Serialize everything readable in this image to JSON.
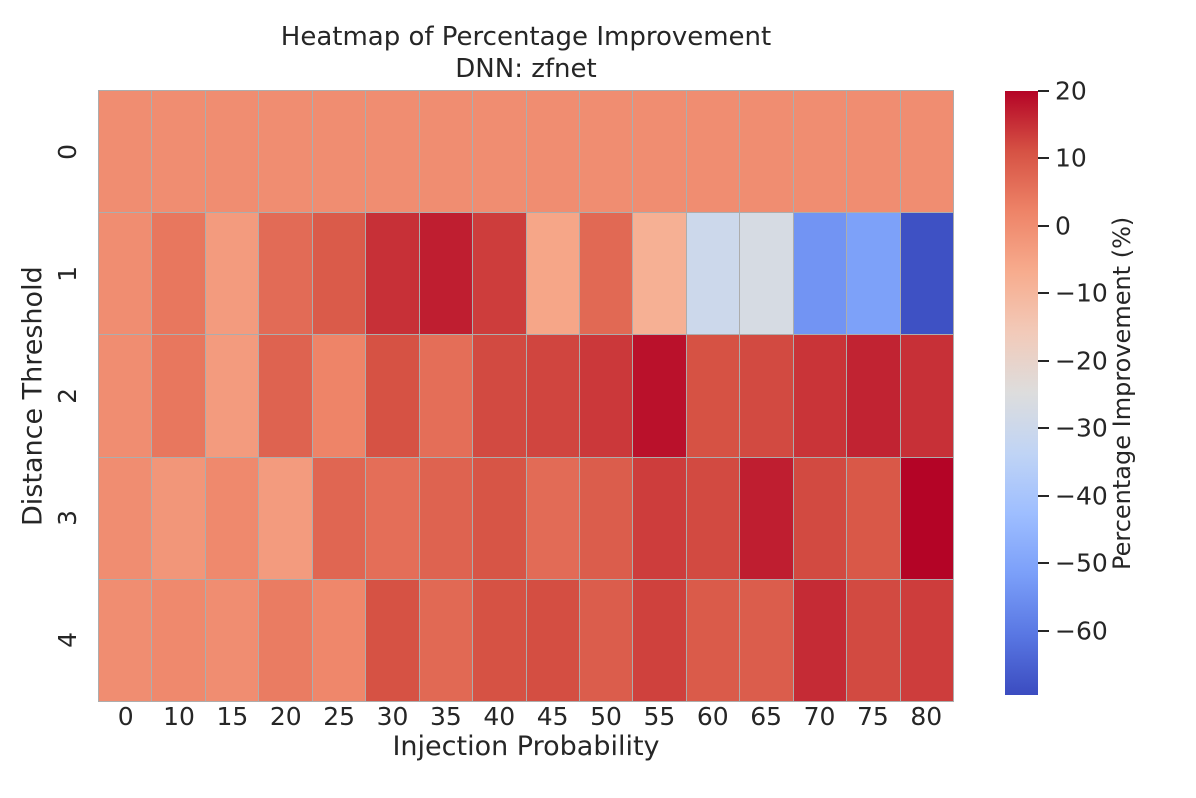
{
  "title": {
    "line1": "Heatmap of Percentage Improvement",
    "line2": "DNN: zfnet"
  },
  "colors": {
    "background": "#ffffff",
    "text": "#262626",
    "grid_line": "#8f8f8f",
    "colormap_stops": [
      "#3b4cc0",
      "#5977e3",
      "#7b9ff9",
      "#9ebeff",
      "#c0d4f5",
      "#dddddd",
      "#f2cab9",
      "#f7ac8e",
      "#ee8468",
      "#d65244",
      "#b40426"
    ]
  },
  "chart_data": {
    "type": "heatmap",
    "title": "Heatmap of Percentage Improvement",
    "subtitle": "DNN: zfnet",
    "xlabel": "Injection Probability",
    "ylabel": "Distance Threshold",
    "colorbar_label": "Percentage Improvement (%)",
    "colormap": "coolwarm",
    "vmin": -69.5,
    "vmax": 20,
    "x_categories": [
      0,
      10,
      15,
      20,
      25,
      30,
      35,
      40,
      45,
      50,
      55,
      60,
      65,
      70,
      75,
      80
    ],
    "y_categories": [
      0,
      1,
      2,
      3,
      4
    ],
    "values": [
      [
        0,
        0,
        0,
        0,
        0,
        0,
        0,
        0,
        0,
        0,
        0,
        0,
        0,
        0,
        0,
        0
      ],
      [
        0,
        4.5,
        -3,
        6.5,
        9.5,
        15,
        17,
        13.5,
        -5.5,
        7,
        -8,
        -30,
        -27,
        -54,
        -51,
        -68.5
      ],
      [
        0,
        4.5,
        -3,
        8,
        2,
        11,
        6,
        12,
        12.5,
        14,
        18.5,
        11,
        12,
        14.5,
        16.5,
        15
      ],
      [
        0,
        -2,
        1,
        -3,
        7.5,
        6,
        8,
        10.5,
        6.5,
        9,
        13.5,
        12,
        17,
        12,
        10,
        20
      ],
      [
        0,
        1,
        0,
        3.5,
        1.5,
        11,
        7,
        11,
        11.5,
        9,
        13,
        9.5,
        9,
        15.5,
        12,
        13.5
      ]
    ],
    "colorbar_ticks": [
      20,
      10,
      0,
      -10,
      -20,
      -30,
      -40,
      -50,
      -60
    ],
    "legend_position": "right",
    "grid": false
  }
}
